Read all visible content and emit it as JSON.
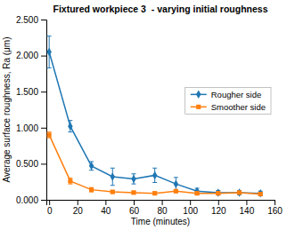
{
  "chart_data": {
    "type": "line",
    "title": "Fixtured workpiece 3  - varying initial roughness",
    "xlabel": "Time (minutes)",
    "ylabel": "Average surface roughness, Ra (μm)",
    "x": [
      0,
      15,
      30,
      45,
      60,
      75,
      90,
      105,
      120,
      135,
      150
    ],
    "series": [
      {
        "name": "Rougher side",
        "marker": "diamond",
        "values": [
          2.05,
          1.02,
          0.47,
          0.32,
          0.29,
          0.34,
          0.22,
          0.12,
          0.1,
          0.1,
          0.09
        ],
        "errors": [
          0.22,
          0.08,
          0.06,
          0.12,
          0.07,
          0.1,
          0.09,
          0.04,
          0.03,
          0.03,
          0.03
        ]
      },
      {
        "name": "Smoother side",
        "marker": "square",
        "values": [
          0.9,
          0.26,
          0.14,
          0.11,
          0.1,
          0.09,
          0.12,
          0.09,
          0.09,
          0.1,
          0.08
        ],
        "errors": [
          0.04,
          0.04,
          0.03,
          0.02,
          0.02,
          0.02,
          0.02,
          0.02,
          0.02,
          0.02,
          0.02
        ]
      }
    ],
    "xlim": [
      -2,
      160
    ],
    "ylim": [
      0.0,
      2.5
    ],
    "xticks": [
      0,
      20,
      40,
      60,
      80,
      100,
      120,
      140,
      160
    ],
    "yticks": [
      {
        "value": 0,
        "label": "0.000"
      },
      {
        "value": 0.5,
        "label": "0.500"
      },
      {
        "value": 1.0,
        "label": "1.000"
      },
      {
        "value": 1.5,
        "label": "1.500"
      },
      {
        "value": 2.0,
        "label": "2.000"
      },
      {
        "value": 2.5,
        "label": "2.500"
      }
    ],
    "grid": false,
    "legend": "right"
  }
}
